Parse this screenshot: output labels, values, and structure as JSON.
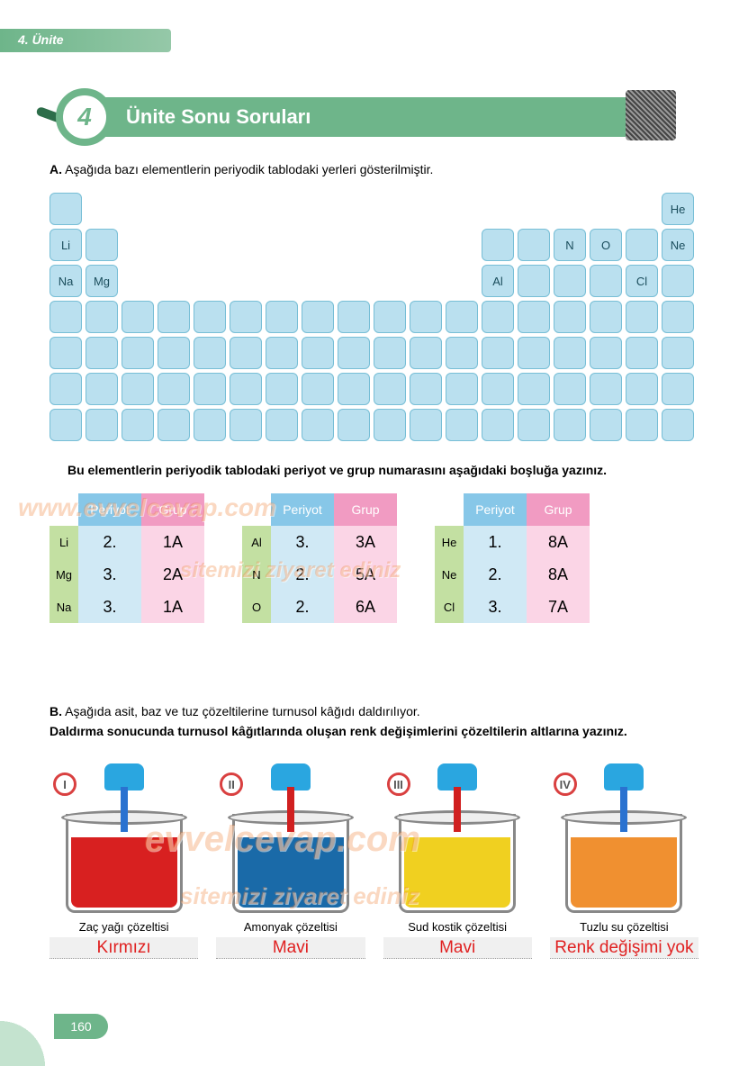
{
  "header": {
    "unit": "4. Ünite",
    "number": "4",
    "title": "Ünite Sonu Soruları"
  },
  "sectionA": {
    "label": "A.",
    "text": "Aşağıda bazı elementlerin periyodik tablodaki yerleri gösterilmiştir.",
    "instruction": "Bu elementlerin periyodik tablodaki periyot ve grup numarasını aşağıdaki boşluğa yazınız."
  },
  "elements": {
    "He": "He",
    "Li": "Li",
    "N": "N",
    "O": "O",
    "Ne": "Ne",
    "Na": "Na",
    "Mg": "Mg",
    "Al": "Al",
    "Cl": "Cl"
  },
  "tableHeaders": {
    "periyot": "Periyot",
    "grup": "Grup"
  },
  "answers": [
    [
      {
        "el": "Li",
        "p": "2.",
        "g": "1A"
      },
      {
        "el": "Mg",
        "p": "3.",
        "g": "2A"
      },
      {
        "el": "Na",
        "p": "3.",
        "g": "1A"
      }
    ],
    [
      {
        "el": "Al",
        "p": "3.",
        "g": "3A"
      },
      {
        "el": "N",
        "p": "2.",
        "g": "5A"
      },
      {
        "el": "O",
        "p": "2.",
        "g": "6A"
      }
    ],
    [
      {
        "el": "He",
        "p": "1.",
        "g": "8A"
      },
      {
        "el": "Ne",
        "p": "2.",
        "g": "8A"
      },
      {
        "el": "Cl",
        "p": "3.",
        "g": "7A"
      }
    ]
  ],
  "sectionB": {
    "label": "B.",
    "text": "Aşağıda asit, baz ve tuz çözeltilerine turnusol kâğıdı daldırılıyor.",
    "instruction": "Daldırma sonucunda turnusol kâğıtlarında oluşan renk değişimlerini çözeltilerin altlarına yazınız."
  },
  "beakers": [
    {
      "badge": "I",
      "label": "Zaç yağı çözeltisi",
      "answer": "Kırmızı",
      "liquid_color": "#d82020",
      "strip_color": "#2a72d0"
    },
    {
      "badge": "II",
      "label": "Amonyak çözeltisi",
      "answer": "Mavi",
      "liquid_color": "#1a6aa8",
      "strip_color": "#d02020"
    },
    {
      "badge": "III",
      "label": "Sud kostik çözeltisi",
      "answer": "Mavi",
      "liquid_color": "#f0d020",
      "strip_color": "#d02020"
    },
    {
      "badge": "IV",
      "label": "Tuzlu su çözeltisi",
      "answer": "Renk değişimi yok",
      "liquid_color": "#f09030",
      "strip_color": "#2a72d0"
    }
  ],
  "page": "160",
  "watermarks": {
    "url": "www.evvelcevap.com",
    "visit": "sitemizi ziyaret ediniz",
    "brand": "evvelcevap.com"
  }
}
